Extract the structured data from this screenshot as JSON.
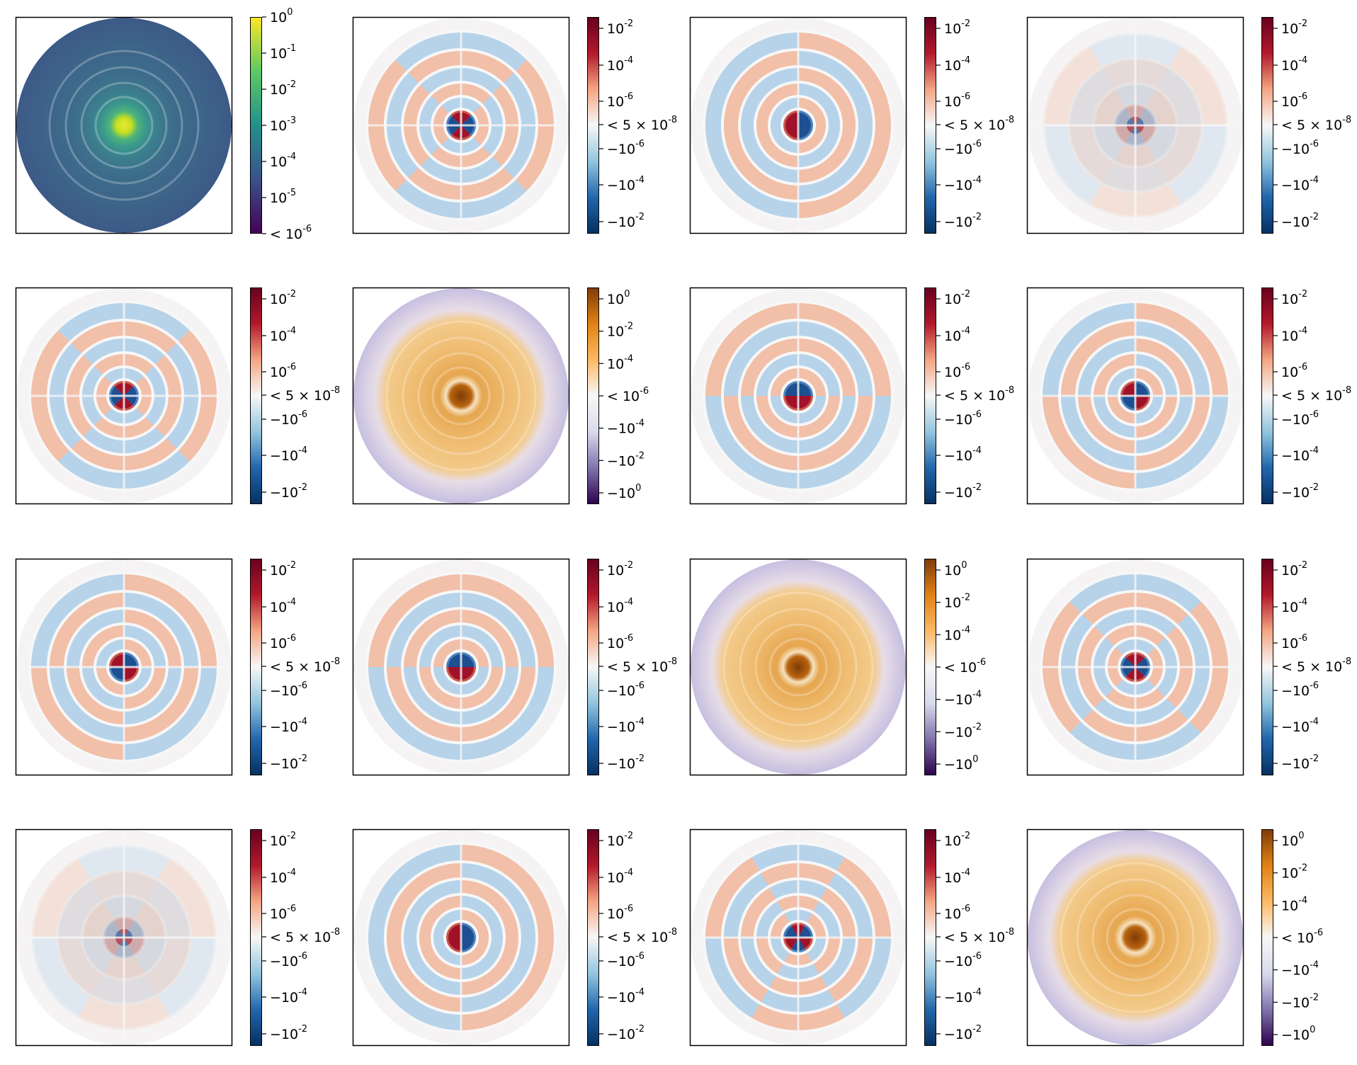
{
  "chart_data": {
    "type": "heatmap",
    "layout": {
      "rows": 4,
      "cols": 4
    },
    "scales": {
      "A": {
        "colormap": "viridis",
        "colormap_colors": [
          "#440154",
          "#3b528b",
          "#21918c",
          "#5ec962",
          "#fde725"
        ],
        "ticks": [
          [
            "10",
            "0"
          ],
          [
            "10",
            "-1"
          ],
          [
            "10",
            "-2"
          ],
          [
            "10",
            "-3"
          ],
          [
            "10",
            "-4"
          ],
          [
            "10",
            "-5"
          ],
          [
            "< 10",
            "-6"
          ]
        ]
      },
      "B": {
        "colormap": "RdBu",
        "colormap_colors": [
          "#053061",
          "#2166ac",
          "#92c5de",
          "#f7f7f7",
          "#f4a582",
          "#b2182b",
          "#67001f"
        ],
        "ticks": [
          [
            "10",
            "-2"
          ],
          [
            "10",
            "-4"
          ],
          [
            "10",
            "-6"
          ],
          [
            "< 5 × 10",
            "-8"
          ],
          [
            "−10",
            "-6"
          ],
          [
            "−10",
            "-4"
          ],
          [
            "−10",
            "-2"
          ]
        ]
      },
      "C": {
        "colormap": "PuOr",
        "colormap_colors": [
          "#2d004b",
          "#8073ac",
          "#d8daeb",
          "#f7f7f7",
          "#fdb863",
          "#e08214",
          "#7f3b08"
        ],
        "ticks": [
          [
            "10",
            "0"
          ],
          [
            "10",
            "-2"
          ],
          [
            "10",
            "-4"
          ],
          [
            "< 10",
            "-6"
          ],
          [
            "−10",
            "-4"
          ],
          [
            "−10",
            "-2"
          ],
          [
            "−10",
            "0"
          ]
        ]
      }
    },
    "panels": [
      {
        "row": 1,
        "col": 1,
        "scale": "A",
        "pattern": "radial"
      },
      {
        "row": 1,
        "col": 2,
        "scale": "B",
        "pattern": "quadrupole"
      },
      {
        "row": 1,
        "col": 3,
        "scale": "B",
        "pattern": "dipole-vertical"
      },
      {
        "row": 1,
        "col": 4,
        "scale": "B",
        "pattern": "faint-hexapole"
      },
      {
        "row": 2,
        "col": 1,
        "scale": "B",
        "pattern": "quadrupole"
      },
      {
        "row": 2,
        "col": 2,
        "scale": "C",
        "pattern": "radial"
      },
      {
        "row": 2,
        "col": 3,
        "scale": "B",
        "pattern": "dipole-horizontal"
      },
      {
        "row": 2,
        "col": 4,
        "scale": "B",
        "pattern": "quadrupole-axis"
      },
      {
        "row": 3,
        "col": 1,
        "scale": "B",
        "pattern": "quadrupole-axis"
      },
      {
        "row": 3,
        "col": 2,
        "scale": "B",
        "pattern": "dipole-horizontal"
      },
      {
        "row": 3,
        "col": 3,
        "scale": "C",
        "pattern": "radial"
      },
      {
        "row": 3,
        "col": 4,
        "scale": "B",
        "pattern": "quadrupole"
      },
      {
        "row": 4,
        "col": 1,
        "scale": "B",
        "pattern": "faint-hexapole"
      },
      {
        "row": 4,
        "col": 2,
        "scale": "B",
        "pattern": "dipole-vertical"
      },
      {
        "row": 4,
        "col": 3,
        "scale": "B",
        "pattern": "hexapole"
      },
      {
        "row": 4,
        "col": 4,
        "scale": "C",
        "pattern": "radial"
      }
    ],
    "title": "",
    "xlabel": "",
    "ylabel": ""
  }
}
